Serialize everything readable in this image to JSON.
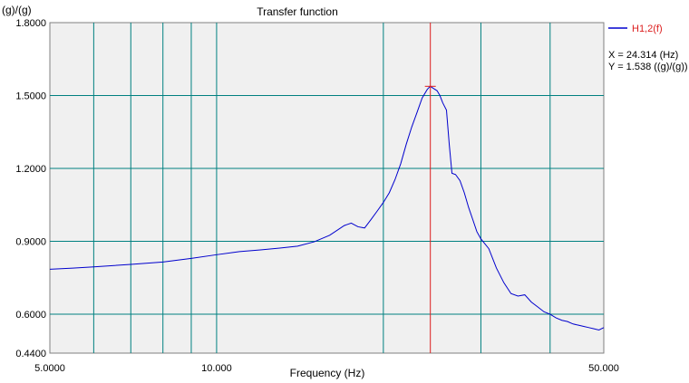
{
  "chart_data": {
    "type": "line",
    "title": "Transfer function",
    "xlabel": "Frequency (Hz)",
    "ylabel": "(g)/(g)",
    "x_scale": "log",
    "xlim": [
      5,
      50
    ],
    "ylim": [
      0.44,
      1.8
    ],
    "x_tick_labels": [
      {
        "value": 5,
        "label": "5.0000"
      },
      {
        "value": 10,
        "label": "10.000"
      },
      {
        "value": 50,
        "label": "50.000"
      }
    ],
    "x_grid": [
      6,
      7,
      8,
      9,
      10,
      20,
      30,
      40
    ],
    "y_ticks": [
      {
        "value": 1.8,
        "label": "1.8000"
      },
      {
        "value": 1.5,
        "label": "1.5000"
      },
      {
        "value": 1.2,
        "label": "1.2000"
      },
      {
        "value": 0.9,
        "label": "0.9000"
      },
      {
        "value": 0.6,
        "label": "0.6000"
      },
      {
        "value": 0.44,
        "label": "0.4400"
      }
    ],
    "grid": true,
    "background": "#f0f0f0",
    "grid_color": "#008080",
    "series": [
      {
        "name": "H1,2(f)",
        "color": "#0000cd",
        "x": [
          5.0,
          5.5,
          6.0,
          7.0,
          8.0,
          9.0,
          10.0,
          11.0,
          12.0,
          13.0,
          14.0,
          15.0,
          16.0,
          17.0,
          17.5,
          18.0,
          18.5,
          19.0,
          19.5,
          20.0,
          20.5,
          21.0,
          21.5,
          22.0,
          22.5,
          23.0,
          23.5,
          24.0,
          24.3,
          24.6,
          25.0,
          25.3,
          25.6,
          26.0,
          26.3,
          26.6,
          27.0,
          27.5,
          28.0,
          28.5,
          29.0,
          29.5,
          30.0,
          31.0,
          32.0,
          33.0,
          34.0,
          35.0,
          36.0,
          37.0,
          38.0,
          39.0,
          40.0,
          41.0,
          42.0,
          43.0,
          44.0,
          45.0,
          46.0,
          47.0,
          48.0,
          49.0,
          50.0
        ],
        "y": [
          0.785,
          0.79,
          0.795,
          0.805,
          0.815,
          0.83,
          0.845,
          0.858,
          0.865,
          0.872,
          0.88,
          0.898,
          0.925,
          0.965,
          0.975,
          0.96,
          0.955,
          0.99,
          1.025,
          1.06,
          1.1,
          1.155,
          1.22,
          1.3,
          1.37,
          1.43,
          1.49,
          1.525,
          1.538,
          1.53,
          1.52,
          1.5,
          1.47,
          1.44,
          1.3,
          1.18,
          1.175,
          1.15,
          1.1,
          1.04,
          0.99,
          0.94,
          0.91,
          0.87,
          0.79,
          0.73,
          0.685,
          0.675,
          0.68,
          0.65,
          0.63,
          0.61,
          0.6,
          0.585,
          0.575,
          0.57,
          0.56,
          0.555,
          0.55,
          0.545,
          0.54,
          0.535,
          0.545
        ]
      }
    ],
    "cursor": {
      "x": 24.314,
      "y": 1.538,
      "color": "#dc1e1e"
    },
    "legend": {
      "placement": "top-right",
      "label": "H1,2(f)"
    },
    "readout": {
      "x_text": "X = 24.314 (Hz)",
      "y_text": "Y = 1.538 ((g)/(g))"
    }
  }
}
